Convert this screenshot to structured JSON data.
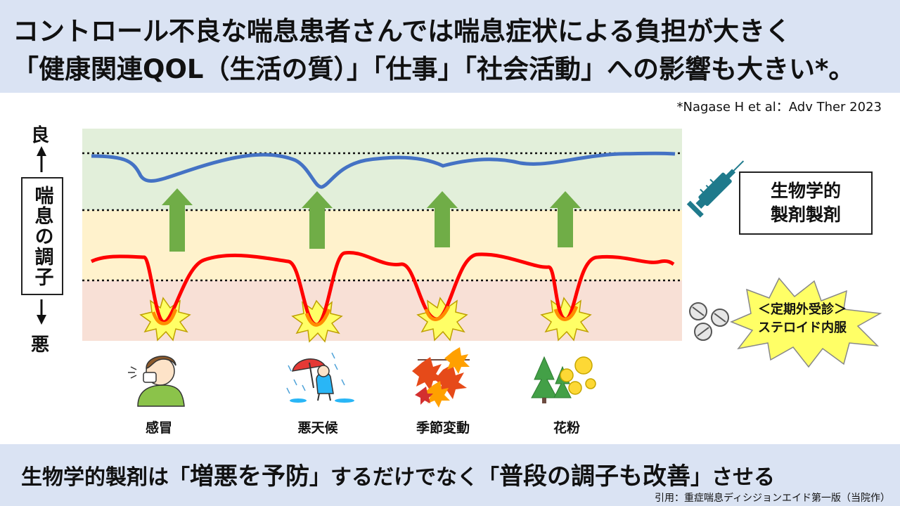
{
  "header": {
    "line1": "コントロール不良な喘息患者さんでは喘息症状による負担が大きく",
    "line2": "「健康関連QOL（生活の質）」「仕事」「社会活動」への影響も大きい*。"
  },
  "citation": "*Nagase H et al：Adv Ther 2023",
  "axis": {
    "good": "良",
    "bad": "悪",
    "label": "喘息の調子"
  },
  "biologic_label": [
    "生物学的",
    "製剤製剤"
  ],
  "steroid_label": [
    "＜定期外受診＞",
    "ステロイド内服"
  ],
  "triggers": [
    "感冒",
    "悪天候",
    "季節変動",
    "花粉"
  ],
  "footer": {
    "part1": "生物学的製剤は「",
    "part2": "増悪を予防",
    "part3": "」するだけでなく「",
    "part4": "普段の調子も改善",
    "part5": "」させる",
    "source": "引用：重症喘息ディシジョンエイド第一版（当院作）"
  },
  "colors": {
    "good_zone": "#e2efda",
    "mid_zone": "#fff2cc",
    "bad_zone": "#f8e0d6",
    "blue_line": "#4472c4",
    "red_line": "#ff0000",
    "arrow": "#70ad47",
    "burst": "#ffff66"
  }
}
